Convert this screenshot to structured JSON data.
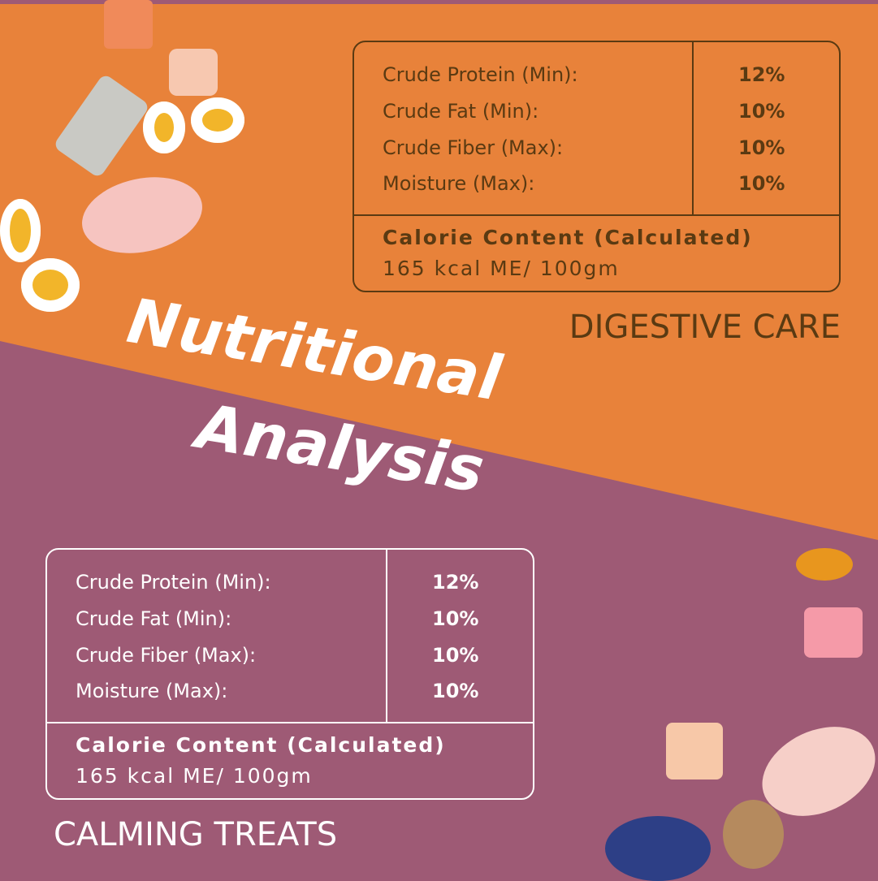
{
  "title": {
    "line1": "Nutritional",
    "line2": "Analysis"
  },
  "colors": {
    "orange": "#e8823a",
    "purple": "#9e5a75",
    "brown": "#5a3a12",
    "white": "#ffffff"
  },
  "digestive": {
    "product": "DIGESTIVE CARE",
    "rows": [
      {
        "label": "Crude Protein (Min):",
        "value": "12%"
      },
      {
        "label": "Crude Fat (Min):",
        "value": "10%"
      },
      {
        "label": "Crude Fiber (Max):",
        "value": "10%"
      },
      {
        "label": "Moisture (Max):",
        "value": "10%"
      }
    ],
    "calorie_title": "Calorie Content (Calculated)",
    "calorie_value": "165 kcal ME/ 100gm"
  },
  "calming": {
    "product": "CALMING TREATS",
    "rows": [
      {
        "label": "Crude Protein (Min):",
        "value": "12%"
      },
      {
        "label": "Crude Fat (Min):",
        "value": "10%"
      },
      {
        "label": "Crude Fiber (Max):",
        "value": "10%"
      },
      {
        "label": "Moisture (Max):",
        "value": "10%"
      }
    ],
    "calorie_title": "Calorie Content (Calculated)",
    "calorie_value": "165 kcal ME/ 100gm"
  }
}
